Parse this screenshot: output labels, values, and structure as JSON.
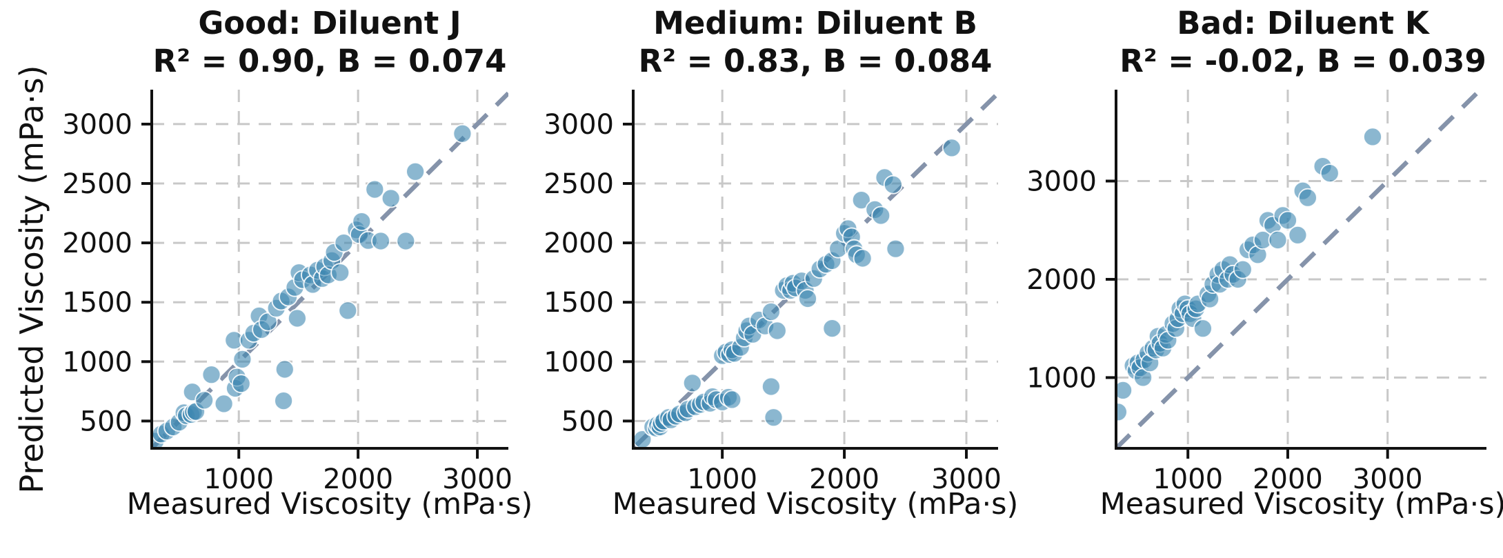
{
  "figure": {
    "ylabel": "Predicted Viscosity (mPa·s)",
    "background_color": "#ffffff"
  },
  "style": {
    "point_fill": "#3d87b0",
    "point_opacity": 0.6,
    "point_edge": "#ffffff",
    "point_radius": 13,
    "identity_line_color": "#8593aa",
    "grid_color": "#c8c8c8",
    "spine_color": "#111111",
    "text_color": "#111111"
  },
  "chart_data": [
    {
      "type": "scatter",
      "quality": "Good",
      "diluent": "Diluent J",
      "title_line1": "Good: Diluent J",
      "title_line2": "R² = 0.90, B = 0.074",
      "r_squared": 0.9,
      "B": 0.074,
      "xlabel": "Measured Viscosity (mPa·s)",
      "ylabel": "Predicted Viscosity (mPa·s)",
      "xticks": [
        1000,
        2000,
        3000
      ],
      "yticks": [
        500,
        1000,
        1500,
        2000,
        2500,
        3000
      ],
      "xlim": [
        270,
        3260
      ],
      "ylim": [
        270,
        3290
      ],
      "grid": true,
      "identity_line": true,
      "points": [
        [
          300,
          330
        ],
        [
          350,
          390
        ],
        [
          396,
          415
        ],
        [
          450,
          450
        ],
        [
          500,
          490
        ],
        [
          540,
          570
        ],
        [
          560,
          545
        ],
        [
          600,
          555
        ],
        [
          620,
          575
        ],
        [
          640,
          580
        ],
        [
          610,
          745
        ],
        [
          710,
          675
        ],
        [
          770,
          890
        ],
        [
          875,
          645
        ],
        [
          970,
          775
        ],
        [
          985,
          870
        ],
        [
          1020,
          815
        ],
        [
          1030,
          1020
        ],
        [
          960,
          1180
        ],
        [
          1085,
          1180
        ],
        [
          1125,
          1240
        ],
        [
          1170,
          1385
        ],
        [
          1190,
          1270
        ],
        [
          1245,
          1335
        ],
        [
          1315,
          1450
        ],
        [
          1355,
          1510
        ],
        [
          1375,
          670
        ],
        [
          1385,
          935
        ],
        [
          1415,
          1545
        ],
        [
          1470,
          1625
        ],
        [
          1490,
          1365
        ],
        [
          1505,
          1750
        ],
        [
          1535,
          1690
        ],
        [
          1600,
          1730
        ],
        [
          1620,
          1650
        ],
        [
          1660,
          1770
        ],
        [
          1700,
          1700
        ],
        [
          1720,
          1800
        ],
        [
          1750,
          1730
        ],
        [
          1780,
          1850
        ],
        [
          1800,
          1920
        ],
        [
          1850,
          1750
        ],
        [
          1880,
          2000
        ],
        [
          1914,
          1430
        ],
        [
          1985,
          2110
        ],
        [
          2010,
          2070
        ],
        [
          2030,
          2180
        ],
        [
          2085,
          2020
        ],
        [
          2190,
          2015
        ],
        [
          2140,
          2450
        ],
        [
          2275,
          2375
        ],
        [
          2400,
          2015
        ],
        [
          2480,
          2600
        ],
        [
          2875,
          2920
        ]
      ]
    },
    {
      "type": "scatter",
      "quality": "Medium",
      "diluent": "Diluent B",
      "title_line1": "Medium: Diluent B",
      "title_line2": "R² = 0.83, B = 0.084",
      "r_squared": 0.83,
      "B": 0.084,
      "xlabel": "Measured Viscosity (mPa·s)",
      "ylabel": "Predicted Viscosity (mPa·s)",
      "xticks": [
        1000,
        2000,
        3000
      ],
      "yticks": [
        500,
        1000,
        1500,
        2000,
        2500,
        3000
      ],
      "xlim": [
        270,
        3260
      ],
      "ylim": [
        270,
        3290
      ],
      "grid": true,
      "identity_line": true,
      "points": [
        [
          345,
          345
        ],
        [
          430,
          450
        ],
        [
          460,
          440
        ],
        [
          470,
          470
        ],
        [
          490,
          450
        ],
        [
          500,
          480
        ],
        [
          520,
          500
        ],
        [
          560,
          530
        ],
        [
          580,
          510
        ],
        [
          620,
          540
        ],
        [
          755,
          820
        ],
        [
          650,
          560
        ],
        [
          700,
          570
        ],
        [
          720,
          600
        ],
        [
          780,
          620
        ],
        [
          820,
          640
        ],
        [
          850,
          660
        ],
        [
          900,
          650
        ],
        [
          920,
          705
        ],
        [
          950,
          680
        ],
        [
          1000,
          660
        ],
        [
          1050,
          700
        ],
        [
          1080,
          680
        ],
        [
          1000,
          1050
        ],
        [
          1030,
          1080
        ],
        [
          1060,
          1060
        ],
        [
          1080,
          1100
        ],
        [
          1100,
          1070
        ],
        [
          1150,
          1120
        ],
        [
          1180,
          1200
        ],
        [
          1200,
          1260
        ],
        [
          1220,
          1300
        ],
        [
          1250,
          1230
        ],
        [
          1300,
          1350
        ],
        [
          1350,
          1300
        ],
        [
          1400,
          1420
        ],
        [
          1400,
          790
        ],
        [
          1420,
          530
        ],
        [
          1450,
          1260
        ],
        [
          1500,
          1600
        ],
        [
          1530,
          1640
        ],
        [
          1560,
          1600
        ],
        [
          1580,
          1660
        ],
        [
          1600,
          1620
        ],
        [
          1650,
          1680
        ],
        [
          1680,
          1600
        ],
        [
          1700,
          1530
        ],
        [
          1750,
          1700
        ],
        [
          1800,
          1780
        ],
        [
          1850,
          1820
        ],
        [
          1900,
          1850
        ],
        [
          1900,
          1280
        ],
        [
          1950,
          1950
        ],
        [
          2000,
          2080
        ],
        [
          2030,
          2120
        ],
        [
          2060,
          2050
        ],
        [
          2080,
          1950
        ],
        [
          2100,
          1900
        ],
        [
          2150,
          1870
        ],
        [
          2140,
          2360
        ],
        [
          2250,
          2280
        ],
        [
          2300,
          2230
        ],
        [
          2330,
          2550
        ],
        [
          2400,
          2490
        ],
        [
          2420,
          1950
        ],
        [
          2880,
          2800
        ]
      ]
    },
    {
      "type": "scatter",
      "quality": "Bad",
      "diluent": "Diluent K",
      "title_line1": "Bad: Diluent K",
      "title_line2": "R² = -0.02, B = 0.039",
      "r_squared": -0.02,
      "B": 0.039,
      "xlabel": "Measured Viscosity (mPa·s)",
      "ylabel": "Predicted Viscosity (mPa·s)",
      "xticks": [
        1000,
        2000,
        3000
      ],
      "yticks": [
        1000,
        2000,
        3000
      ],
      "xlim": [
        280,
        3990
      ],
      "ylim": [
        280,
        3930
      ],
      "grid": true,
      "identity_line": true,
      "points": [
        [
          300,
          650
        ],
        [
          350,
          870
        ],
        [
          450,
          1120
        ],
        [
          480,
          1070
        ],
        [
          500,
          1150
        ],
        [
          520,
          1100
        ],
        [
          550,
          1000
        ],
        [
          560,
          1180
        ],
        [
          600,
          1250
        ],
        [
          620,
          1150
        ],
        [
          650,
          1300
        ],
        [
          680,
          1280
        ],
        [
          700,
          1420
        ],
        [
          720,
          1350
        ],
        [
          750,
          1300
        ],
        [
          780,
          1440
        ],
        [
          800,
          1380
        ],
        [
          850,
          1550
        ],
        [
          880,
          1500
        ],
        [
          900,
          1600
        ],
        [
          920,
          1700
        ],
        [
          950,
          1650
        ],
        [
          970,
          1750
        ],
        [
          1000,
          1700
        ],
        [
          1020,
          1650
        ],
        [
          1050,
          1600
        ],
        [
          1080,
          1700
        ],
        [
          1100,
          1750
        ],
        [
          1150,
          1500
        ],
        [
          1200,
          1850
        ],
        [
          1220,
          1800
        ],
        [
          1250,
          1950
        ],
        [
          1300,
          2050
        ],
        [
          1320,
          1950
        ],
        [
          1350,
          2100
        ],
        [
          1400,
          2000
        ],
        [
          1420,
          2150
        ],
        [
          1450,
          2050
        ],
        [
          1500,
          2000
        ],
        [
          1550,
          2100
        ],
        [
          1600,
          2300
        ],
        [
          1650,
          2350
        ],
        [
          1700,
          2250
        ],
        [
          1750,
          2400
        ],
        [
          1800,
          2600
        ],
        [
          1850,
          2550
        ],
        [
          1900,
          2400
        ],
        [
          1950,
          2650
        ],
        [
          2000,
          2600
        ],
        [
          2100,
          2450
        ],
        [
          2150,
          2900
        ],
        [
          2200,
          2830
        ],
        [
          2350,
          3150
        ],
        [
          2420,
          3080
        ],
        [
          2850,
          3450
        ]
      ]
    }
  ]
}
